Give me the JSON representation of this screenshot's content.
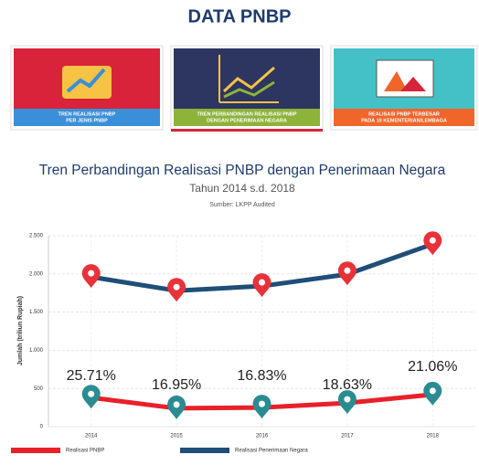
{
  "header": {
    "title": "DATA PNBP"
  },
  "tabs": [
    {
      "lines": [
        "TREN REALISASI PNBP",
        "PER JENIS PNBP"
      ]
    },
    {
      "lines": [
        "TREN PERBANDINGAN REALISASI PNBP",
        "DENGAN PENERIMAAN NEGARA"
      ]
    },
    {
      "lines": [
        "REALISASI PNBP TERBESAR",
        "PADA 10 KEMENTERIAN/LEMBAGA"
      ]
    }
  ],
  "chart_data": {
    "type": "line",
    "title": "Tren Perbandingan Realisasi PNBP dengan Penerimaan Negara",
    "subtitle": "Tahun 2014 s.d. 2018",
    "source": "Sumber: LKPP Audited",
    "y_label": "Jumlah (triliun Rupiah)",
    "categories": [
      "2014",
      "2015",
      "2016",
      "2017",
      "2018"
    ],
    "series": [
      {
        "name": "Realisasi PNBP",
        "color": "#e8202a",
        "marker_color": "#2a8c91",
        "values": [
          380,
          240,
          250,
          310,
          420
        ]
      },
      {
        "name": "Realisasi Penerimaan Negara",
        "color": "#1f4e79",
        "marker_color": "#e8323a",
        "values": [
          1960,
          1780,
          1840,
          1995,
          2390
        ]
      }
    ],
    "annotations": [
      "25.71%",
      "16.95%",
      "16.83%",
      "18.63%",
      "21.06%"
    ],
    "ylim": [
      0,
      2500
    ],
    "yticks": [
      0,
      500,
      {
        "value": 1000,
        "label": "1.000"
      },
      {
        "value": 1500,
        "label": "1.500"
      },
      {
        "value": 2000,
        "label": "2.000"
      },
      {
        "value": 2500,
        "label": "2.500"
      }
    ],
    "grid": true
  }
}
